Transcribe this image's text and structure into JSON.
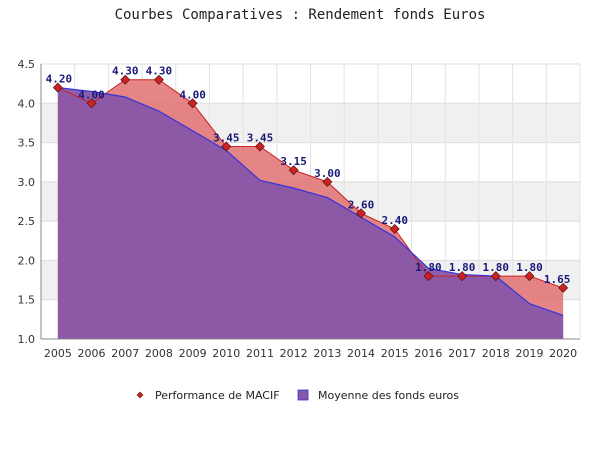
{
  "chart_data": {
    "type": "area",
    "title": "Courbes Comparatives : Rendement fonds Euros",
    "x": [
      "2005",
      "2006",
      "2007",
      "2008",
      "2009",
      "2010",
      "2011",
      "2012",
      "2013",
      "2014",
      "2015",
      "2016",
      "2017",
      "2018",
      "2019",
      "2020"
    ],
    "series": [
      {
        "name": "Performance de MACIF",
        "values": [
          4.2,
          4.0,
          4.3,
          4.3,
          4.0,
          3.45,
          3.45,
          3.15,
          3.0,
          2.6,
          2.4,
          1.8,
          1.8,
          1.8,
          1.8,
          1.65
        ],
        "labels": [
          "4.20",
          "4.00",
          "4.30",
          "4.30",
          "4.00",
          "3.45",
          "3.45",
          "3.15",
          "3.00",
          "2.60",
          "2.40",
          "1.80",
          "1.80",
          "1.80",
          "1.80",
          "1.65"
        ],
        "color": "#cc2222",
        "fill": "#e07070",
        "marker": "diamond"
      },
      {
        "name": "Moyenne des fonds euros",
        "values": [
          4.2,
          4.15,
          4.08,
          3.9,
          3.65,
          3.4,
          3.02,
          2.92,
          2.8,
          2.55,
          2.3,
          1.9,
          1.82,
          1.8,
          1.45,
          1.3
        ],
        "color": "#3333dd",
        "fill": "#8855a8"
      }
    ],
    "y_ticks": [
      "1.0",
      "1.5",
      "2.0",
      "2.5",
      "3.0",
      "3.5",
      "4.0",
      "4.5"
    ],
    "ylim": [
      1.0,
      4.5
    ],
    "grid": true,
    "legend_position": "bottom"
  }
}
